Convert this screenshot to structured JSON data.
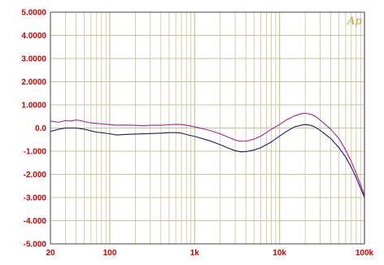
{
  "chart_data": {
    "type": "line",
    "title": "",
    "xlabel": "",
    "ylabel": "",
    "x_scale": "log",
    "xlim": [
      20,
      100000
    ],
    "ylim": [
      -5,
      5
    ],
    "grid": true,
    "y_ticks": [
      "5.0000",
      "4.0000",
      "3.0000",
      "2.0000",
      "1.0000",
      "0.0",
      "-1.000",
      "-2.000",
      "-3.000",
      "-4.000",
      "-5.000"
    ],
    "x_ticks": [
      {
        "value": 20,
        "label": "20"
      },
      {
        "value": 100,
        "label": "100"
      },
      {
        "value": 1000,
        "label": "1k"
      },
      {
        "value": 10000,
        "label": "10k"
      },
      {
        "value": 100000,
        "label": "100k"
      }
    ],
    "series": [
      {
        "color": "#b0208a",
        "points": [
          [
            20,
            0.3
          ],
          [
            25,
            0.25
          ],
          [
            30,
            0.32
          ],
          [
            35,
            0.3
          ],
          [
            40,
            0.35
          ],
          [
            45,
            0.32
          ],
          [
            50,
            0.28
          ],
          [
            60,
            0.22
          ],
          [
            70,
            0.2
          ],
          [
            80,
            0.18
          ],
          [
            100,
            0.15
          ],
          [
            120,
            0.12
          ],
          [
            150,
            0.13
          ],
          [
            200,
            0.12
          ],
          [
            250,
            0.1
          ],
          [
            300,
            0.12
          ],
          [
            400,
            0.12
          ],
          [
            500,
            0.14
          ],
          [
            600,
            0.16
          ],
          [
            700,
            0.15
          ],
          [
            800,
            0.12
          ],
          [
            1000,
            0.05
          ],
          [
            1500,
            -0.1
          ],
          [
            2000,
            -0.25
          ],
          [
            2500,
            -0.4
          ],
          [
            3000,
            -0.52
          ],
          [
            3500,
            -0.57
          ],
          [
            4000,
            -0.57
          ],
          [
            5000,
            -0.48
          ],
          [
            6000,
            -0.35
          ],
          [
            7000,
            -0.2
          ],
          [
            8000,
            -0.05
          ],
          [
            10000,
            0.15
          ],
          [
            12000,
            0.35
          ],
          [
            15000,
            0.52
          ],
          [
            18000,
            0.62
          ],
          [
            20000,
            0.64
          ],
          [
            23000,
            0.6
          ],
          [
            26000,
            0.52
          ],
          [
            30000,
            0.35
          ],
          [
            40000,
            -0.05
          ],
          [
            50000,
            -0.45
          ],
          [
            60000,
            -0.95
          ],
          [
            70000,
            -1.45
          ],
          [
            80000,
            -1.95
          ],
          [
            90000,
            -2.45
          ],
          [
            100000,
            -2.9
          ]
        ]
      },
      {
        "color": "#1a1a6e",
        "points": [
          [
            20,
            -0.15
          ],
          [
            25,
            -0.05
          ],
          [
            30,
            0.0
          ],
          [
            40,
            0.0
          ],
          [
            50,
            -0.05
          ],
          [
            60,
            -0.12
          ],
          [
            70,
            -0.18
          ],
          [
            80,
            -0.2
          ],
          [
            100,
            -0.25
          ],
          [
            120,
            -0.3
          ],
          [
            150,
            -0.28
          ],
          [
            200,
            -0.26
          ],
          [
            300,
            -0.24
          ],
          [
            400,
            -0.22
          ],
          [
            500,
            -0.2
          ],
          [
            600,
            -0.2
          ],
          [
            700,
            -0.22
          ],
          [
            800,
            -0.28
          ],
          [
            1000,
            -0.36
          ],
          [
            1500,
            -0.55
          ],
          [
            2000,
            -0.72
          ],
          [
            2500,
            -0.87
          ],
          [
            3000,
            -0.98
          ],
          [
            3500,
            -1.03
          ],
          [
            4000,
            -1.02
          ],
          [
            5000,
            -0.95
          ],
          [
            6000,
            -0.85
          ],
          [
            7000,
            -0.72
          ],
          [
            8000,
            -0.6
          ],
          [
            10000,
            -0.35
          ],
          [
            12000,
            -0.15
          ],
          [
            15000,
            0.05
          ],
          [
            18000,
            0.12
          ],
          [
            20000,
            0.15
          ],
          [
            23000,
            0.12
          ],
          [
            26000,
            0.05
          ],
          [
            30000,
            -0.1
          ],
          [
            40000,
            -0.45
          ],
          [
            50000,
            -0.85
          ],
          [
            60000,
            -1.25
          ],
          [
            70000,
            -1.7
          ],
          [
            80000,
            -2.15
          ],
          [
            90000,
            -2.6
          ],
          [
            100000,
            -3.0
          ]
        ]
      }
    ]
  },
  "logo": {
    "text": "Ap",
    "color": "#c8a038"
  },
  "colors": {
    "grid": "#c9c497",
    "axis": "#444444",
    "tick_text": "#cc0000"
  }
}
